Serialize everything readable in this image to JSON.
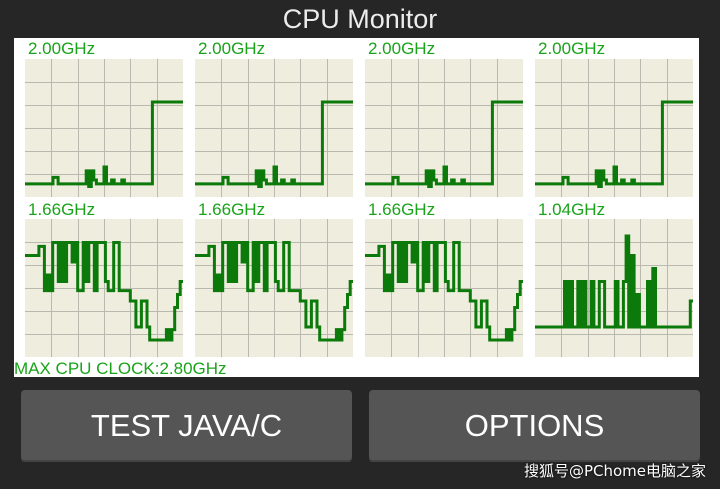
{
  "app": {
    "title": "CPU Monitor",
    "max_clock_label": "MAX CPU CLOCK:2.80GHz"
  },
  "colors": {
    "background": "#262626",
    "panel": "#ffffff",
    "graph_bg": "#efeddd",
    "grid": "#b9b9b0",
    "trace": "#0b7a0b",
    "freq_text": "#1aa31a",
    "button_bg": "#555555",
    "button_text": "#ffffff"
  },
  "cores": [
    {
      "freq": "2.00GHz",
      "history": [
        0.07,
        0.07,
        0.07,
        0.07,
        0.07,
        0.07,
        0.07,
        0.07,
        0.07,
        0.07,
        0.07,
        0.12,
        0.12,
        0.07,
        0.07,
        0.07,
        0.07,
        0.07,
        0.07,
        0.07,
        0.07,
        0.07,
        0.07,
        0.07,
        0.17,
        0.05,
        0.17,
        0.1,
        0.07,
        0.07,
        0.07,
        0.2,
        0.07,
        0.07,
        0.1,
        0.07,
        0.07,
        0.07,
        0.1,
        0.07,
        0.07,
        0.07,
        0.07,
        0.07,
        0.07,
        0.07,
        0.07,
        0.07,
        0.07,
        0.07,
        0.7,
        0.7,
        0.7,
        0.7,
        0.7,
        0.7,
        0.7,
        0.7,
        0.7,
        0.7,
        0.7,
        0.7
      ]
    },
    {
      "freq": "2.00GHz",
      "history": [
        0.07,
        0.07,
        0.07,
        0.07,
        0.07,
        0.07,
        0.07,
        0.07,
        0.07,
        0.07,
        0.07,
        0.12,
        0.12,
        0.07,
        0.07,
        0.07,
        0.07,
        0.07,
        0.07,
        0.07,
        0.07,
        0.07,
        0.07,
        0.07,
        0.17,
        0.05,
        0.17,
        0.1,
        0.07,
        0.07,
        0.07,
        0.2,
        0.07,
        0.07,
        0.1,
        0.07,
        0.07,
        0.07,
        0.1,
        0.07,
        0.07,
        0.07,
        0.07,
        0.07,
        0.07,
        0.07,
        0.07,
        0.07,
        0.07,
        0.07,
        0.7,
        0.7,
        0.7,
        0.7,
        0.7,
        0.7,
        0.7,
        0.7,
        0.7,
        0.7,
        0.7,
        0.7
      ]
    },
    {
      "freq": "2.00GHz",
      "history": [
        0.07,
        0.07,
        0.07,
        0.07,
        0.07,
        0.07,
        0.07,
        0.07,
        0.07,
        0.07,
        0.07,
        0.12,
        0.12,
        0.07,
        0.07,
        0.07,
        0.07,
        0.07,
        0.07,
        0.07,
        0.07,
        0.07,
        0.07,
        0.07,
        0.17,
        0.05,
        0.17,
        0.1,
        0.07,
        0.07,
        0.07,
        0.2,
        0.07,
        0.07,
        0.1,
        0.07,
        0.07,
        0.07,
        0.1,
        0.07,
        0.07,
        0.07,
        0.07,
        0.07,
        0.07,
        0.07,
        0.07,
        0.07,
        0.07,
        0.07,
        0.7,
        0.7,
        0.7,
        0.7,
        0.7,
        0.7,
        0.7,
        0.7,
        0.7,
        0.7,
        0.7,
        0.7
      ]
    },
    {
      "freq": "2.00GHz",
      "history": [
        0.07,
        0.07,
        0.07,
        0.07,
        0.07,
        0.07,
        0.07,
        0.07,
        0.07,
        0.07,
        0.07,
        0.12,
        0.12,
        0.07,
        0.07,
        0.07,
        0.07,
        0.07,
        0.07,
        0.07,
        0.07,
        0.07,
        0.07,
        0.07,
        0.17,
        0.05,
        0.17,
        0.1,
        0.07,
        0.07,
        0.07,
        0.2,
        0.07,
        0.07,
        0.1,
        0.07,
        0.07,
        0.07,
        0.1,
        0.07,
        0.07,
        0.07,
        0.07,
        0.07,
        0.07,
        0.07,
        0.07,
        0.07,
        0.07,
        0.07,
        0.7,
        0.7,
        0.7,
        0.7,
        0.7,
        0.7,
        0.7,
        0.7,
        0.7,
        0.7,
        0.7,
        0.7
      ]
    },
    {
      "freq": "1.66GHz",
      "history": [
        0.75,
        0.75,
        0.75,
        0.75,
        0.75,
        0.82,
        0.82,
        0.48,
        0.6,
        0.48,
        0.85,
        0.85,
        0.55,
        0.85,
        0.55,
        0.85,
        0.85,
        0.7,
        0.85,
        0.48,
        0.48,
        0.85,
        0.55,
        0.85,
        0.85,
        0.48,
        0.85,
        0.85,
        0.85,
        0.55,
        0.48,
        0.48,
        0.85,
        0.85,
        0.48,
        0.48,
        0.48,
        0.48,
        0.4,
        0.4,
        0.2,
        0.2,
        0.4,
        0.4,
        0.2,
        0.1,
        0.1,
        0.1,
        0.1,
        0.1,
        0.1,
        0.18,
        0.1,
        0.18,
        0.35,
        0.45,
        0.55
      ]
    },
    {
      "freq": "1.66GHz",
      "history": [
        0.75,
        0.75,
        0.75,
        0.75,
        0.75,
        0.82,
        0.82,
        0.48,
        0.6,
        0.48,
        0.85,
        0.85,
        0.55,
        0.85,
        0.55,
        0.85,
        0.85,
        0.7,
        0.85,
        0.48,
        0.48,
        0.85,
        0.55,
        0.85,
        0.85,
        0.48,
        0.85,
        0.85,
        0.85,
        0.55,
        0.48,
        0.48,
        0.85,
        0.85,
        0.48,
        0.48,
        0.48,
        0.48,
        0.4,
        0.4,
        0.2,
        0.2,
        0.4,
        0.4,
        0.2,
        0.1,
        0.1,
        0.1,
        0.1,
        0.1,
        0.1,
        0.18,
        0.1,
        0.18,
        0.35,
        0.45,
        0.55
      ]
    },
    {
      "freq": "1.66GHz",
      "history": [
        0.75,
        0.75,
        0.75,
        0.75,
        0.75,
        0.82,
        0.82,
        0.48,
        0.6,
        0.48,
        0.85,
        0.85,
        0.55,
        0.85,
        0.55,
        0.85,
        0.85,
        0.7,
        0.85,
        0.48,
        0.48,
        0.85,
        0.55,
        0.85,
        0.85,
        0.48,
        0.85,
        0.85,
        0.85,
        0.55,
        0.48,
        0.48,
        0.85,
        0.85,
        0.48,
        0.48,
        0.48,
        0.48,
        0.4,
        0.4,
        0.2,
        0.2,
        0.4,
        0.4,
        0.2,
        0.1,
        0.1,
        0.1,
        0.1,
        0.1,
        0.1,
        0.18,
        0.1,
        0.18,
        0.35,
        0.45,
        0.55
      ]
    },
    {
      "freq": "1.04GHz",
      "history": [
        0.2,
        0.2,
        0.2,
        0.2,
        0.2,
        0.2,
        0.2,
        0.2,
        0.2,
        0.2,
        0.2,
        0.55,
        0.2,
        0.55,
        0.2,
        0.2,
        0.55,
        0.2,
        0.55,
        0.2,
        0.2,
        0.55,
        0.2,
        0.2,
        0.55,
        0.55,
        0.2,
        0.2,
        0.2,
        0.2,
        0.55,
        0.2,
        0.2,
        0.55,
        0.9,
        0.2,
        0.75,
        0.2,
        0.45,
        0.2,
        0.2,
        0.2,
        0.55,
        0.2,
        0.65,
        0.2,
        0.2,
        0.2,
        0.2,
        0.2,
        0.2,
        0.2,
        0.2,
        0.2,
        0.2,
        0.2,
        0.2,
        0.2,
        0.4
      ]
    }
  ],
  "buttons": {
    "test": "TEST JAVA/C",
    "options": "OPTIONS"
  },
  "watermark": "搜狐号@PChome电脑之家"
}
